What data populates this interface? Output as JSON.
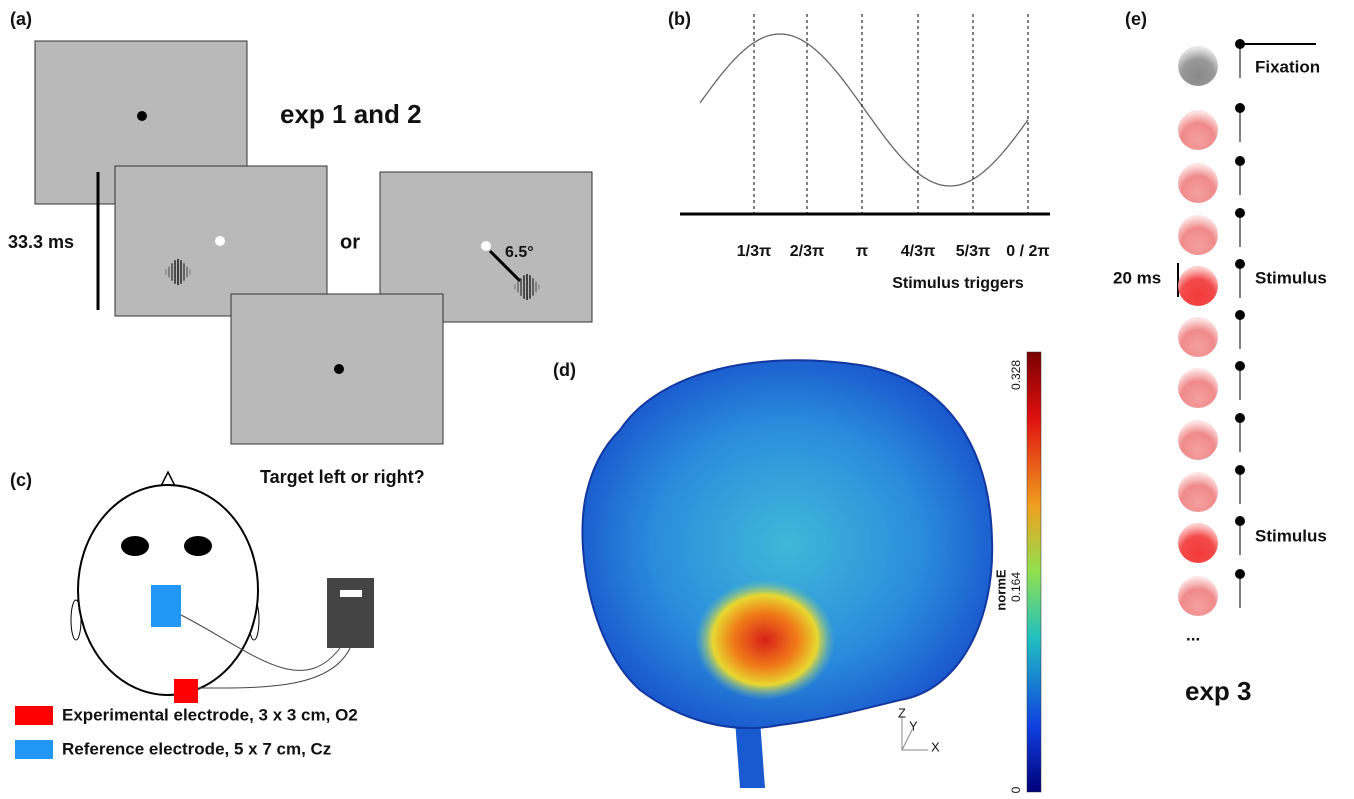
{
  "panel_a": {
    "label": "(a)",
    "title": "exp 1 and 2",
    "duration": "33.3 ms",
    "or": "or",
    "angle": "6.5°",
    "question": "Target left or right?"
  },
  "panel_b": {
    "label": "(b)",
    "phases": [
      "1/3π",
      "2/3π",
      "π",
      "4/3π",
      "5/3π",
      "0 / 2π"
    ],
    "caption": "Stimulus triggers"
  },
  "panel_c": {
    "label": "(c)",
    "legend": [
      "Experimental electrode, 3 x 3 cm, O2",
      "Reference electrode, 5 x 7 cm, Cz"
    ]
  },
  "panel_d": {
    "label": "(d)",
    "colorbar_max": "0.328",
    "colorbar_mid": "0.164",
    "colorbar_min": "0",
    "colorbar_title": "normE",
    "axes": [
      "Z",
      "Y",
      "X"
    ]
  },
  "panel_e": {
    "label": "(e)",
    "fixation": "Fixation",
    "duration": "20 ms",
    "stimulus": [
      "Stimulus",
      "Stimulus"
    ],
    "ellipsis": "...",
    "title": "exp 3"
  }
}
